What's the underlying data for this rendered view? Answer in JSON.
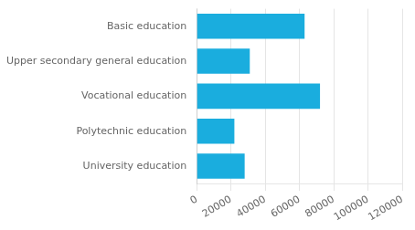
{
  "chart_data": {
    "type": "bar",
    "orientation": "horizontal",
    "categories": [
      "University education",
      "Polytechnic education",
      "Vocational education",
      "Upper secondary general education",
      "Basic education"
    ],
    "values": [
      28000,
      22000,
      72000,
      31000,
      63000
    ],
    "color": "#1aadde",
    "xlim": [
      0,
      120000
    ],
    "xticks": [
      0,
      20000,
      40000,
      60000,
      80000,
      100000,
      120000
    ],
    "grid": true
  }
}
